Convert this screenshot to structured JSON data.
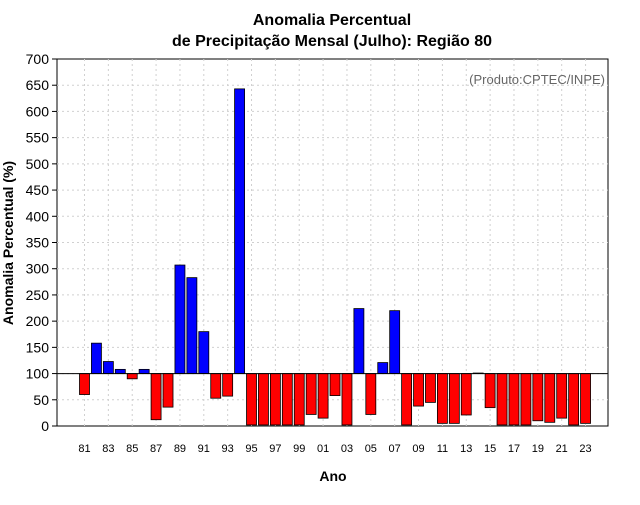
{
  "chart_data": {
    "type": "bar",
    "title_line1": "Anomalia Percentual",
    "title_line2": "de Precipitação Mensal (Julho): Região 80",
    "source_note": "(Produto:CPTEC/INPE)",
    "xlabel": "Ano",
    "ylabel": "Anomalia Percentual (%)",
    "ylim": [
      0,
      700
    ],
    "yticks": [
      0,
      50,
      100,
      150,
      200,
      250,
      300,
      350,
      400,
      450,
      500,
      550,
      600,
      650,
      700
    ],
    "baseline": 100,
    "grid": true,
    "colors": {
      "above": "#0000ff",
      "below": "#ff0000",
      "edge": "#000000"
    },
    "categories": [
      "81",
      "82",
      "83",
      "84",
      "85",
      "86",
      "87",
      "88",
      "89",
      "90",
      "91",
      "92",
      "93",
      "94",
      "95",
      "96",
      "97",
      "98",
      "99",
      "00",
      "01",
      "02",
      "03",
      "04",
      "05",
      "06",
      "07",
      "08",
      "09",
      "10",
      "11",
      "12",
      "13",
      "14",
      "15",
      "16",
      "17",
      "18",
      "19",
      "20",
      "21",
      "22",
      "23"
    ],
    "xtick_labels": [
      "81",
      "83",
      "85",
      "87",
      "89",
      "91",
      "93",
      "95",
      "97",
      "99",
      "01",
      "03",
      "05",
      "07",
      "09",
      "11",
      "13",
      "15",
      "17",
      "19",
      "21",
      "23"
    ],
    "values": [
      60,
      158,
      123,
      108,
      90,
      108,
      12,
      36,
      307,
      283,
      180,
      53,
      57,
      643,
      2,
      2,
      2,
      2,
      2,
      22,
      15,
      58,
      2,
      224,
      22,
      121,
      220,
      2,
      38,
      45,
      5,
      5,
      21,
      101,
      35,
      2,
      2,
      2,
      10,
      7,
      15,
      2,
      5
    ]
  }
}
